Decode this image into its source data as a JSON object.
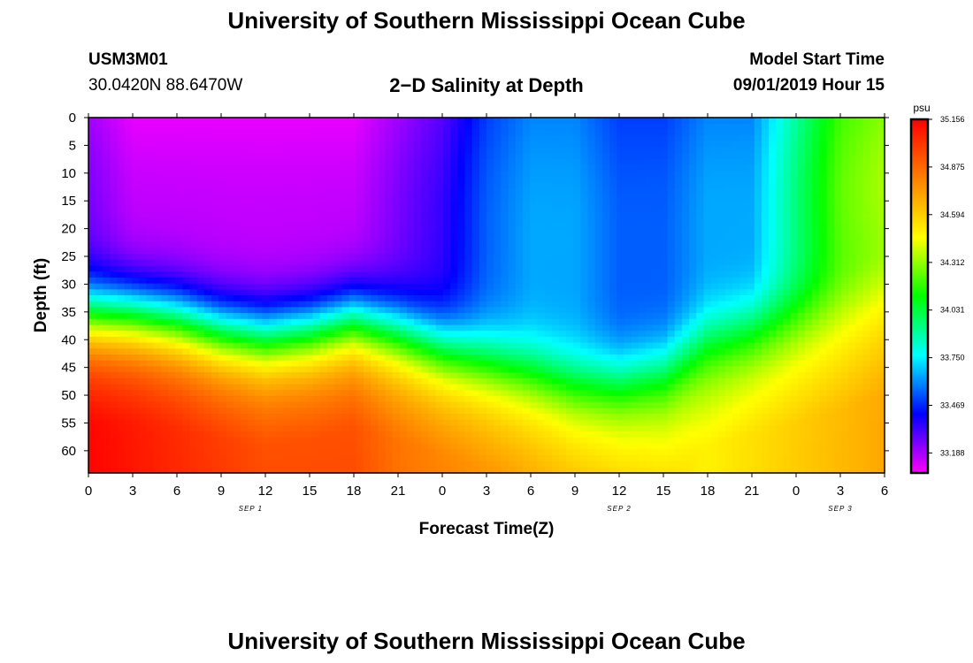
{
  "page": {
    "title_top": "University of Southern Mississippi Ocean Cube",
    "title_bottom": "University of Southern Mississippi Ocean Cube",
    "station_id": "USM3M01",
    "station_coords": "30.0420N 88.6470W",
    "model_start_label": "Model Start Time",
    "model_start_value": "09/01/2019 Hour 15"
  },
  "chart_data": {
    "type": "heatmap",
    "title": "2−D Salinity at Depth",
    "xlabel": "Forecast Time(Z)",
    "ylabel": "Depth (ft)",
    "x_ticks": [
      "0",
      "3",
      "6",
      "9",
      "12",
      "15",
      "18",
      "21",
      "0",
      "3",
      "6",
      "9",
      "12",
      "15",
      "18",
      "21",
      "0",
      "3",
      "6"
    ],
    "x_hours": [
      0,
      3,
      6,
      9,
      12,
      15,
      18,
      21,
      24,
      27,
      30,
      33,
      36,
      39,
      42,
      45,
      48,
      51,
      54
    ],
    "x_range": [
      0,
      54
    ],
    "date_labels": [
      {
        "label": "SEP 1",
        "hour": 11
      },
      {
        "label": "SEP 2",
        "hour": 36
      },
      {
        "label": "SEP 3",
        "hour": 51
      }
    ],
    "y_ticks": [
      "0",
      "5",
      "10",
      "15",
      "20",
      "25",
      "30",
      "35",
      "40",
      "45",
      "50",
      "55",
      "60"
    ],
    "y_values": [
      0,
      5,
      10,
      15,
      20,
      25,
      30,
      35,
      40,
      45,
      50,
      55,
      60
    ],
    "y_range": [
      0,
      64
    ],
    "colorbar": {
      "unit": "psu",
      "min": 33.07,
      "max": 35.156,
      "ticks": [
        "35.156",
        "34.875",
        "34.594",
        "34.312",
        "34.031",
        "33.750",
        "33.469",
        "33.188"
      ],
      "tick_values": [
        35.156,
        34.875,
        34.594,
        34.312,
        34.031,
        33.75,
        33.469,
        33.188
      ],
      "colors": [
        "#ff00ff",
        "#0000ff",
        "#00ffff",
        "#00ff00",
        "#ffff00",
        "#ff8000",
        "#ff0000"
      ]
    },
    "contours_description_hours": [
      0,
      3,
      6,
      9,
      12,
      15,
      18,
      21,
      24,
      27,
      30,
      33,
      36,
      39,
      42,
      45,
      48,
      51,
      54
    ],
    "top_surface_salinity": [
      33.2,
      33.1,
      33.1,
      33.1,
      33.1,
      33.1,
      33.1,
      33.2,
      33.3,
      33.5,
      33.6,
      33.6,
      33.5,
      33.5,
      33.6,
      33.6,
      33.9,
      34.2,
      34.3
    ],
    "halocline_depth_ft": [
      30,
      30,
      31,
      33,
      34,
      33,
      31,
      33,
      36,
      38,
      40,
      42,
      42,
      40,
      34,
      32,
      30,
      28,
      25
    ],
    "bottom_salinity": [
      35.15,
      35.1,
      35.05,
      35.0,
      34.95,
      34.95,
      34.95,
      34.85,
      34.8,
      34.75,
      34.7,
      34.65,
      34.6,
      34.55,
      34.5,
      34.55,
      34.6,
      34.65,
      34.7
    ]
  }
}
